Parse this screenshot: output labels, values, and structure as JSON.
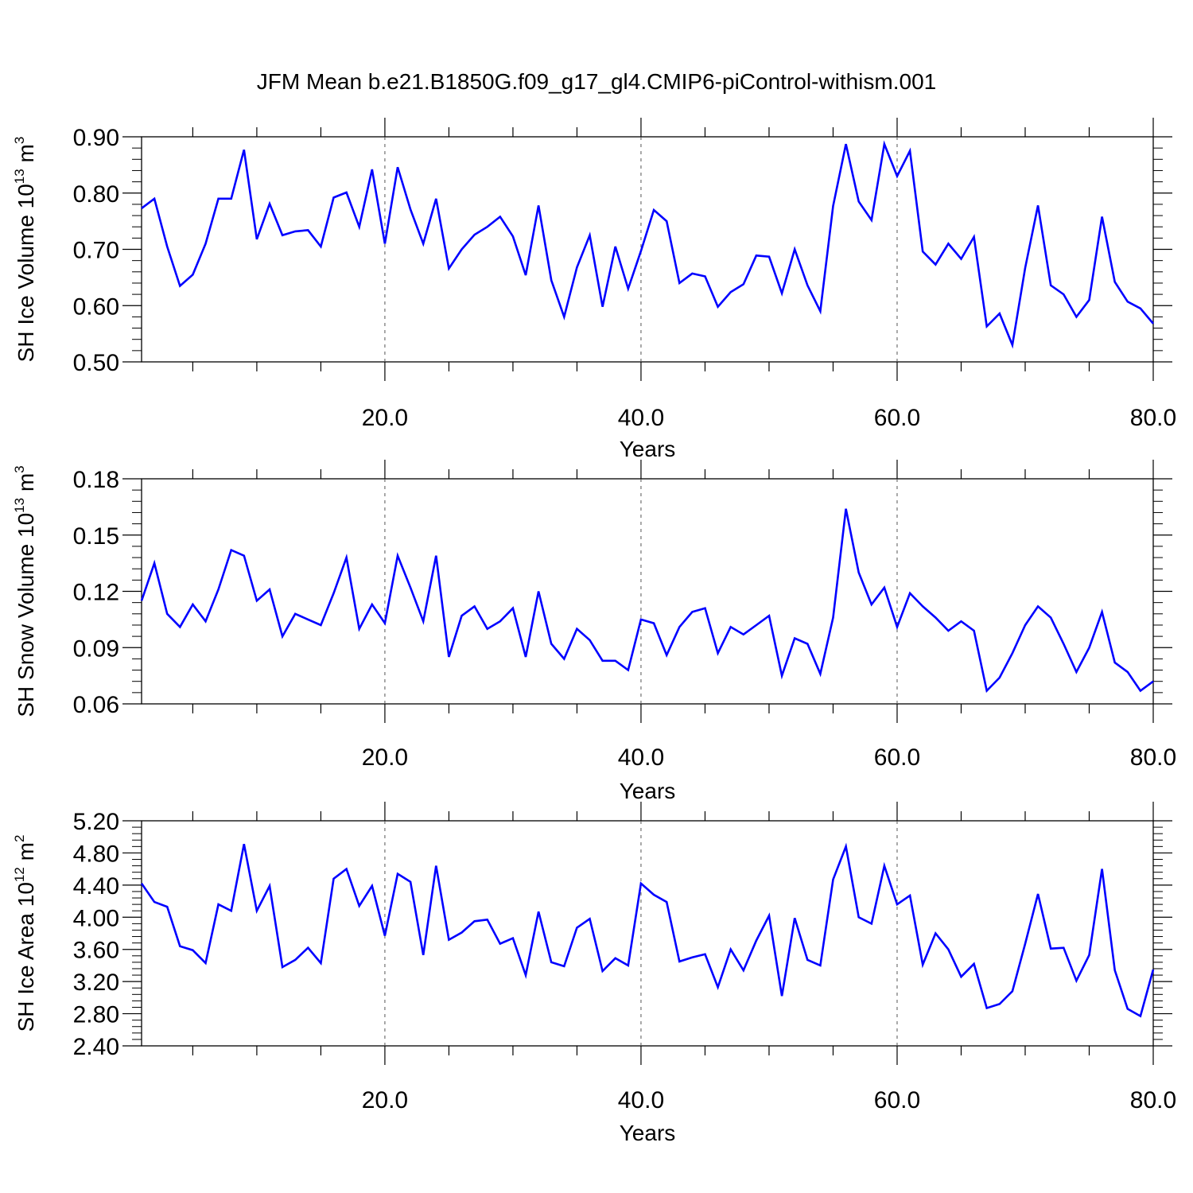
{
  "figure": {
    "title": "JFM Mean b.e21.B1850G.f09_g17_gl4.CMIP6-piControl-withism.001",
    "line_color": "#0000ff"
  },
  "chart_data": [
    {
      "type": "line",
      "ylabel": {
        "text": "SH Ice Volume 10",
        "exp": "13",
        "unit": " m",
        "unit_exp": "3"
      },
      "xlabel": "Years",
      "xlim": [
        1,
        80
      ],
      "ylim": [
        0.5,
        0.9
      ],
      "xticks": [
        20,
        40,
        60,
        80
      ],
      "xtick_labels": [
        "20.0",
        "40.0",
        "60.0",
        "80.0"
      ],
      "yticks": [
        0.5,
        0.6,
        0.7,
        0.8,
        0.9
      ],
      "ytick_labels": [
        "0.50",
        "0.60",
        "0.70",
        "0.80",
        "0.90"
      ],
      "grid": "dashed vertical lines at major x ticks",
      "series": [
        {
          "x": [
            1,
            2,
            3,
            4,
            5,
            6,
            7,
            8,
            9,
            10,
            11,
            12,
            13,
            14,
            15,
            16,
            17,
            18,
            19,
            20,
            21,
            22,
            23,
            24,
            25,
            26,
            27,
            28,
            29,
            30,
            31,
            32,
            33,
            34,
            35,
            36,
            37,
            38,
            39,
            40,
            41,
            42,
            43,
            44,
            45,
            46,
            47,
            48,
            49,
            50,
            51,
            52,
            53,
            54,
            55,
            56,
            57,
            58,
            59,
            60,
            61,
            62,
            63,
            64,
            65,
            66,
            67,
            68,
            69,
            70,
            71,
            72,
            73,
            74,
            75,
            76,
            77,
            78,
            79,
            80
          ],
          "values": [
            0.773,
            0.79,
            0.705,
            0.635,
            0.655,
            0.71,
            0.79,
            0.79,
            0.877,
            0.718,
            0.781,
            0.725,
            0.732,
            0.734,
            0.705,
            0.792,
            0.801,
            0.74,
            0.842,
            0.71,
            0.846,
            0.771,
            0.71,
            0.79,
            0.666,
            0.7,
            0.726,
            0.74,
            0.758,
            0.723,
            0.654,
            0.778,
            0.645,
            0.58,
            0.668,
            0.725,
            0.598,
            0.705,
            0.63,
            0.697,
            0.77,
            0.75,
            0.64,
            0.657,
            0.652,
            0.598,
            0.624,
            0.638,
            0.689,
            0.687,
            0.622,
            0.7,
            0.636,
            0.59,
            0.777,
            0.887,
            0.785,
            0.752,
            0.887,
            0.83,
            0.875,
            0.696,
            0.673,
            0.71,
            0.683,
            0.722,
            0.563,
            0.586,
            0.53,
            0.667,
            0.778,
            0.636,
            0.62,
            0.58,
            0.61,
            0.758,
            0.642,
            0.607,
            0.595,
            0.568
          ]
        }
      ]
    },
    {
      "type": "line",
      "ylabel": {
        "text": "SH Snow Volume 10",
        "exp": "13",
        "unit": " m",
        "unit_exp": "3"
      },
      "xlabel": "Years",
      "xlim": [
        1,
        80
      ],
      "ylim": [
        0.06,
        0.18
      ],
      "xticks": [
        20,
        40,
        60,
        80
      ],
      "xtick_labels": [
        "20.0",
        "40.0",
        "60.0",
        "80.0"
      ],
      "yticks": [
        0.06,
        0.09,
        0.12,
        0.15,
        0.18
      ],
      "ytick_labels": [
        "0.06",
        "0.09",
        "0.12",
        "0.15",
        "0.18"
      ],
      "grid": "dashed vertical lines at major x ticks",
      "series": [
        {
          "x": [
            1,
            2,
            3,
            4,
            5,
            6,
            7,
            8,
            9,
            10,
            11,
            12,
            13,
            14,
            15,
            16,
            17,
            18,
            19,
            20,
            21,
            22,
            23,
            24,
            25,
            26,
            27,
            28,
            29,
            30,
            31,
            32,
            33,
            34,
            35,
            36,
            37,
            38,
            39,
            40,
            41,
            42,
            43,
            44,
            45,
            46,
            47,
            48,
            49,
            50,
            51,
            52,
            53,
            54,
            55,
            56,
            57,
            58,
            59,
            60,
            61,
            62,
            63,
            64,
            65,
            66,
            67,
            68,
            69,
            70,
            71,
            72,
            73,
            74,
            75,
            76,
            77,
            78,
            79,
            80
          ],
          "values": [
            0.115,
            0.135,
            0.108,
            0.101,
            0.113,
            0.104,
            0.121,
            0.142,
            0.139,
            0.115,
            0.121,
            0.096,
            0.108,
            0.105,
            0.102,
            0.119,
            0.138,
            0.1,
            0.113,
            0.103,
            0.139,
            0.122,
            0.104,
            0.139,
            0.085,
            0.107,
            0.112,
            0.1,
            0.104,
            0.111,
            0.085,
            0.12,
            0.092,
            0.084,
            0.1,
            0.094,
            0.083,
            0.083,
            0.078,
            0.105,
            0.103,
            0.086,
            0.101,
            0.109,
            0.111,
            0.087,
            0.101,
            0.097,
            0.102,
            0.107,
            0.075,
            0.095,
            0.092,
            0.076,
            0.106,
            0.164,
            0.13,
            0.113,
            0.122,
            0.101,
            0.119,
            0.112,
            0.106,
            0.099,
            0.104,
            0.099,
            0.067,
            0.074,
            0.087,
            0.102,
            0.112,
            0.106,
            0.092,
            0.077,
            0.09,
            0.109,
            0.082,
            0.077,
            0.067,
            0.072
          ]
        }
      ]
    },
    {
      "type": "line",
      "ylabel": {
        "text": "SH Ice Area 10",
        "exp": "12",
        "unit": " m",
        "unit_exp": "2"
      },
      "xlabel": "Years",
      "xlim": [
        1,
        80
      ],
      "ylim": [
        2.4,
        5.2
      ],
      "xticks": [
        20,
        40,
        60,
        80
      ],
      "xtick_labels": [
        "20.0",
        "40.0",
        "60.0",
        "80.0"
      ],
      "yticks": [
        2.4,
        2.8,
        3.2,
        3.6,
        4.0,
        4.4,
        4.8,
        5.2
      ],
      "ytick_labels": [
        "2.40",
        "2.80",
        "3.20",
        "3.60",
        "4.00",
        "4.40",
        "4.80",
        "5.20"
      ],
      "grid": "dashed vertical lines at major x ticks",
      "series": [
        {
          "x": [
            1,
            2,
            3,
            4,
            5,
            6,
            7,
            8,
            9,
            10,
            11,
            12,
            13,
            14,
            15,
            16,
            17,
            18,
            19,
            20,
            21,
            22,
            23,
            24,
            25,
            26,
            27,
            28,
            29,
            30,
            31,
            32,
            33,
            34,
            35,
            36,
            37,
            38,
            39,
            40,
            41,
            42,
            43,
            44,
            45,
            46,
            47,
            48,
            49,
            50,
            51,
            52,
            53,
            54,
            55,
            56,
            57,
            58,
            59,
            60,
            61,
            62,
            63,
            64,
            65,
            66,
            67,
            68,
            69,
            70,
            71,
            72,
            73,
            74,
            75,
            76,
            77,
            78,
            79,
            80
          ],
          "values": [
            4.42,
            4.19,
            4.13,
            3.64,
            3.59,
            3.43,
            4.16,
            4.08,
            4.91,
            4.08,
            4.39,
            3.38,
            3.47,
            3.62,
            3.43,
            4.48,
            4.6,
            4.14,
            4.39,
            3.77,
            4.54,
            4.44,
            3.53,
            4.64,
            3.72,
            3.81,
            3.95,
            3.97,
            3.67,
            3.74,
            3.28,
            4.07,
            3.44,
            3.39,
            3.87,
            3.98,
            3.33,
            3.49,
            3.4,
            4.42,
            4.28,
            4.19,
            3.45,
            3.5,
            3.54,
            3.13,
            3.6,
            3.34,
            3.71,
            4.02,
            3.02,
            3.99,
            3.47,
            3.4,
            4.47,
            4.88,
            4.0,
            3.92,
            4.64,
            4.16,
            4.27,
            3.41,
            3.8,
            3.6,
            3.26,
            3.42,
            2.87,
            2.92,
            3.08,
            3.67,
            4.29,
            3.61,
            3.62,
            3.21,
            3.53,
            4.6,
            3.34,
            2.86,
            2.77,
            3.35
          ]
        }
      ]
    }
  ]
}
